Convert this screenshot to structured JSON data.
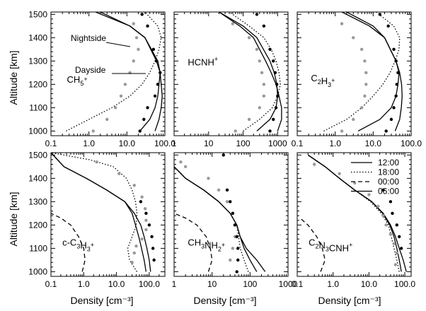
{
  "axis_labels": {
    "altitude": "Altitude [km]",
    "density": "Density [cm⁻³]"
  },
  "colors": {
    "model": "#000000",
    "dayside": "#000000",
    "nightside": "#999999"
  },
  "legend": {
    "placement": "top-right of bottom-right panel",
    "entries": [
      {
        "label": "12:00",
        "dash": "solid"
      },
      {
        "label": "18:00",
        "dash": "dotted"
      },
      {
        "label": "00:00",
        "dash": "dashed"
      },
      {
        "label": "06:00",
        "dash": "solid"
      }
    ]
  },
  "annotations": {
    "nightside": "Nightside",
    "dayside": "Dayside"
  },
  "chart_data": [
    {
      "type": "line",
      "species": [
        "CH",
        "5",
        "+"
      ],
      "x_scale": "log",
      "xlim": [
        0.1,
        100
      ],
      "xticks": [
        "0.1",
        "1.0",
        "10.0",
        "100.0"
      ],
      "ylim": [
        980,
        1510
      ],
      "yticks": [
        1000,
        1100,
        1200,
        1300,
        1400,
        1500
      ],
      "series": [
        {
          "name": "12:00",
          "dash": "solid",
          "x": [
            55,
            70,
            80,
            85,
            80,
            75,
            60,
            30,
            12,
            2
          ],
          "y": [
            1000,
            1050,
            1100,
            1150,
            1200,
            1250,
            1300,
            1400,
            1450,
            1510
          ]
        },
        {
          "name": "18:00",
          "dash": "dotted",
          "x": [
            0.25,
            1.0,
            4,
            12,
            25,
            40,
            55,
            70,
            80,
            65,
            30
          ],
          "y": [
            1000,
            1050,
            1100,
            1150,
            1200,
            1250,
            1300,
            1350,
            1400,
            1450,
            1510
          ]
        },
        {
          "name": "06:00",
          "dash": "solid",
          "x": [
            22,
            40,
            55,
            65,
            70,
            75,
            65,
            30,
            12,
            1.5
          ],
          "y": [
            1000,
            1050,
            1100,
            1150,
            1200,
            1250,
            1300,
            1400,
            1450,
            1510
          ]
        }
      ],
      "dayside_points": {
        "x": [
          22,
          28,
          35,
          55,
          65,
          75,
          60,
          50,
          35,
          25
        ],
        "y": [
          1000,
          1050,
          1100,
          1150,
          1200,
          1250,
          1300,
          1350,
          1450,
          1500
        ]
      },
      "nightside_points": {
        "x": [
          1.3,
          3,
          5,
          7,
          9,
          12,
          15,
          20,
          18,
          15
        ],
        "y": [
          1000,
          1050,
          1100,
          1150,
          1200,
          1250,
          1300,
          1350,
          1400,
          1460
        ]
      }
    },
    {
      "type": "line",
      "species": [
        "HCNH",
        "",
        "+"
      ],
      "x_scale": "log",
      "xlim": [
        1,
        2000
      ],
      "xticks": [
        "1",
        "10",
        "100",
        "1000"
      ],
      "ylim": [
        980,
        1510
      ],
      "yticks": [
        1000,
        1100,
        1200,
        1300,
        1400,
        1500
      ],
      "series": [
        {
          "name": "12:00",
          "dash": "solid",
          "x": [
            1000,
            1300,
            1300,
            1100,
            900,
            650,
            450,
            200,
            80,
            20
          ],
          "y": [
            1000,
            1050,
            1100,
            1150,
            1200,
            1250,
            1300,
            1400,
            1450,
            1510
          ]
        },
        {
          "name": "18:00",
          "dash": "dotted",
          "x": [
            100,
            300,
            700,
            1000,
            1200,
            1100,
            900,
            650,
            400,
            150,
            40
          ],
          "y": [
            1000,
            1050,
            1100,
            1150,
            1200,
            1250,
            1300,
            1350,
            1400,
            1450,
            1510
          ]
        },
        {
          "name": "06:00",
          "dash": "solid",
          "x": [
            250,
            600,
            900,
            1000,
            950,
            800,
            600,
            250,
            100,
            20
          ],
          "y": [
            1000,
            1050,
            1100,
            1150,
            1200,
            1250,
            1300,
            1400,
            1450,
            1510
          ]
        }
      ],
      "dayside_points": {
        "x": [
          600,
          750,
          900,
          1000,
          950,
          850,
          750,
          600,
          400,
          250
        ],
        "y": [
          1000,
          1050,
          1100,
          1150,
          1200,
          1250,
          1300,
          1350,
          1450,
          1500
        ]
      },
      "nightside_points": {
        "x": [
          60,
          150,
          300,
          400,
          400,
          350,
          300,
          250,
          150,
          50
        ],
        "y": [
          1000,
          1050,
          1100,
          1150,
          1200,
          1250,
          1300,
          1350,
          1400,
          1460
        ]
      }
    },
    {
      "type": "line",
      "species": [
        "C",
        "2",
        "H",
        "3",
        "+"
      ],
      "x_scale": "log",
      "xlim": [
        0.1,
        100
      ],
      "xticks": [
        "0.1",
        "1.0",
        "10.0",
        "100.0"
      ],
      "ylim": [
        980,
        1510
      ],
      "yticks": [
        1000,
        1100,
        1200,
        1300,
        1400,
        1500
      ],
      "series": [
        {
          "name": "12:00",
          "dash": "solid",
          "x": [
            38,
            50,
            55,
            58,
            56,
            50,
            40,
            20,
            10,
            2
          ],
          "y": [
            1000,
            1050,
            1100,
            1150,
            1200,
            1250,
            1300,
            1400,
            1450,
            1510
          ]
        },
        {
          "name": "18:00",
          "dash": "dotted",
          "x": [
            0.5,
            2,
            5,
            10,
            18,
            28,
            38,
            48,
            50,
            35,
            12
          ],
          "y": [
            1000,
            1050,
            1100,
            1150,
            1200,
            1250,
            1300,
            1350,
            1400,
            1450,
            1510
          ]
        },
        {
          "name": "06:00",
          "dash": "solid",
          "x": [
            4,
            15,
            30,
            40,
            45,
            48,
            40,
            20,
            8,
            1.5
          ],
          "y": [
            1000,
            1050,
            1100,
            1150,
            1200,
            1250,
            1300,
            1400,
            1450,
            1510
          ]
        }
      ],
      "dayside_points": {
        "x": [
          22,
          30,
          35,
          40,
          42,
          45,
          40,
          35,
          25,
          15
        ],
        "y": [
          1000,
          1050,
          1100,
          1150,
          1200,
          1250,
          1300,
          1350,
          1450,
          1500
        ]
      },
      "nightside_points": {
        "x": [
          1.5,
          3,
          5,
          6,
          6.5,
          6.5,
          6,
          5,
          3,
          1.5
        ],
        "y": [
          1000,
          1050,
          1100,
          1150,
          1200,
          1250,
          1300,
          1350,
          1400,
          1460
        ]
      }
    },
    {
      "type": "line",
      "species": [
        "c-C",
        "3",
        "H",
        "3",
        "+"
      ],
      "x_scale": "log",
      "xlim": [
        0.1,
        300
      ],
      "xticks": [
        "0.1",
        "1.0",
        "10.0",
        "100.0"
      ],
      "ylim": [
        980,
        1510
      ],
      "yticks": [
        1000,
        1100,
        1200,
        1300,
        1400,
        1500
      ],
      "series": [
        {
          "name": "12:00",
          "dash": "solid",
          "x": [
            110,
            100,
            85,
            70,
            55,
            35,
            18,
            5,
            1.2,
            0.25,
            0.1
          ],
          "y": [
            1000,
            1050,
            1100,
            1150,
            1200,
            1250,
            1300,
            1350,
            1400,
            1450,
            1510
          ]
        },
        {
          "name": "18:00",
          "dash": "dotted",
          "x": [
            42,
            25,
            22,
            30,
            40,
            42,
            38,
            30,
            20,
            8,
            1.5,
            0.1
          ],
          "y": [
            1000,
            1050,
            1100,
            1150,
            1200,
            1250,
            1300,
            1350,
            1400,
            1450,
            1480,
            1510
          ]
        },
        {
          "name": "00:00",
          "dash": "dashed",
          "x": [
            0.9,
            1.1,
            1.0,
            0.7,
            0.4,
            0.2,
            0.1
          ],
          "y": [
            1000,
            1050,
            1100,
            1150,
            1200,
            1230,
            1250
          ]
        },
        {
          "name": "06:00",
          "dash": "solid",
          "x": [
            80,
            70,
            58,
            48,
            38,
            30,
            18,
            5,
            1.2,
            0.25,
            0.1
          ],
          "y": [
            1000,
            1050,
            1100,
            1150,
            1200,
            1250,
            1300,
            1350,
            1400,
            1450,
            1510
          ]
        }
      ],
      "dayside_points": {
        "x": [
          140,
          130,
          120,
          100,
          80,
          55
        ],
        "y": [
          1050,
          1100,
          1150,
          1200,
          1250,
          1300
        ]
      },
      "nightside_points": {
        "x": [
          30,
          35,
          40,
          60,
          80,
          80,
          75,
          60,
          35,
          12,
          2.5
        ],
        "y": [
          1040,
          1080,
          1110,
          1140,
          1180,
          1220,
          1270,
          1320,
          1370,
          1420,
          1470
        ]
      }
    },
    {
      "type": "line",
      "species": [
        "CH",
        "3",
        "NH",
        "2",
        "+"
      ],
      "x_scale": "log",
      "xlim": [
        1,
        1000
      ],
      "xticks": [
        "1",
        "10",
        "100",
        "1000"
      ],
      "ylim": [
        980,
        1510
      ],
      "yticks": [
        1000,
        1100,
        1200,
        1300,
        1400,
        1500
      ],
      "series": [
        {
          "name": "12:00",
          "dash": "solid",
          "x": [
            250,
            150,
            80,
            55,
            45,
            30,
            15,
            6,
            2,
            1
          ],
          "y": [
            1000,
            1050,
            1100,
            1150,
            1200,
            1250,
            1300,
            1350,
            1400,
            1450
          ]
        },
        {
          "name": "18:00",
          "dash": "dotted",
          "x": [
            90,
            70,
            55,
            50,
            45,
            30,
            15,
            6,
            2,
            1
          ],
          "y": [
            1000,
            1050,
            1100,
            1150,
            1200,
            1250,
            1300,
            1350,
            1400,
            1450
          ]
        },
        {
          "name": "00:00",
          "dash": "dashed",
          "x": [
            8,
            10,
            9,
            7,
            4,
            2,
            1
          ],
          "y": [
            1000,
            1050,
            1100,
            1150,
            1200,
            1230,
            1250
          ]
        },
        {
          "name": "06:00",
          "dash": "solid",
          "x": [
            150,
            100,
            70,
            55,
            45,
            30,
            15,
            6,
            2,
            1
          ],
          "y": [
            1000,
            1050,
            1100,
            1150,
            1200,
            1250,
            1300,
            1350,
            1400,
            1450
          ]
        }
      ],
      "dayside_points": {
        "x": [
          45,
          48,
          48,
          45,
          40,
          35,
          30,
          25,
          20
        ],
        "y": [
          1000,
          1050,
          1100,
          1150,
          1200,
          1250,
          1300,
          1350,
          1500
        ]
      },
      "nightside_points": {
        "x": [
          30,
          35,
          40,
          40,
          35,
          25,
          15,
          8,
          2,
          1.5
        ],
        "y": [
          1050,
          1100,
          1150,
          1200,
          1250,
          1300,
          1350,
          1400,
          1450,
          1470
        ]
      }
    },
    {
      "type": "line",
      "species": [
        "C",
        "2",
        "N",
        "3",
        "CNH",
        "",
        "+"
      ],
      "x_scale": "log",
      "xlim": [
        0.1,
        150
      ],
      "xticks": [
        "0.1",
        "1.0",
        "10.0",
        "100.0"
      ],
      "ylim": [
        980,
        1510
      ],
      "yticks": [
        1000,
        1100,
        1200,
        1300,
        1400,
        1500
      ],
      "series": [
        {
          "name": "12:00",
          "dash": "solid",
          "x": [
            110,
            90,
            70,
            55,
            40,
            25,
            12,
            4,
            1.5,
            0.6,
            0.2
          ],
          "y": [
            1000,
            1050,
            1100,
            1150,
            1200,
            1250,
            1300,
            1350,
            1400,
            1450,
            1500
          ]
        },
        {
          "name": "18:00",
          "dash": "dotted",
          "x": [
            70,
            60,
            50,
            42,
            35,
            22,
            11,
            4,
            1.5,
            0.6,
            0.2
          ],
          "y": [
            1000,
            1050,
            1100,
            1150,
            1200,
            1250,
            1300,
            1350,
            1400,
            1450,
            1500
          ]
        },
        {
          "name": "00:00",
          "dash": "dashed",
          "x": [
            0.45,
            0.6,
            0.5,
            0.35,
            0.2,
            0.12
          ],
          "y": [
            1000,
            1050,
            1100,
            1150,
            1200,
            1230
          ]
        },
        {
          "name": "06:00",
          "dash": "solid",
          "x": [
            80,
            70,
            60,
            50,
            38,
            24,
            12,
            4,
            1.5,
            0.6,
            0.2
          ],
          "y": [
            1000,
            1050,
            1100,
            1150,
            1200,
            1250,
            1300,
            1350,
            1400,
            1450,
            1500
          ]
        }
      ],
      "dayside_points": {
        "x": [
          80,
          70,
          60,
          45,
          40,
          25
        ],
        "y": [
          1100,
          1150,
          1200,
          1250,
          1300,
          1350
        ]
      },
      "nightside_points": {
        "x": [
          55,
          60,
          50,
          40,
          30,
          25,
          18,
          10,
          4,
          1.5,
          0.3
        ],
        "y": [
          1030,
          1080,
          1120,
          1160,
          1200,
          1240,
          1280,
          1330,
          1380,
          1420,
          1460
        ]
      }
    }
  ]
}
